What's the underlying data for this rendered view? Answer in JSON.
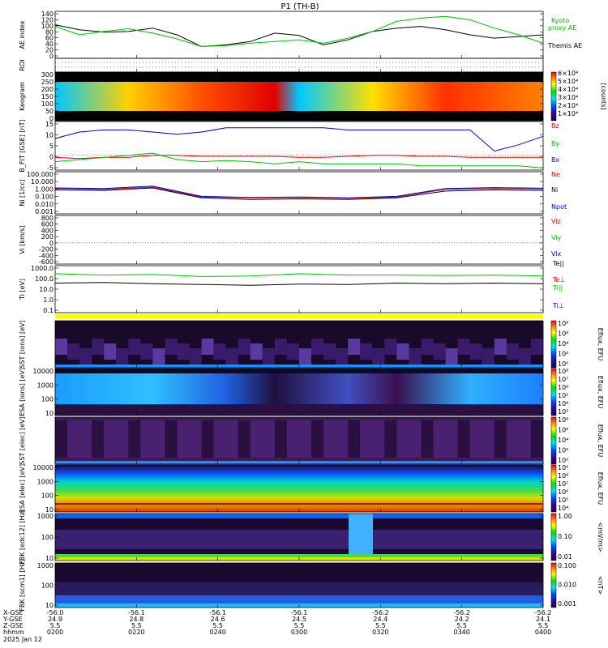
{
  "title": "P1  (TH-B)",
  "date": "2025 Jan 12",
  "time_axis": {
    "ticks": [
      "0200",
      "0220",
      "0240",
      "0300",
      "0320",
      "0340",
      "0400"
    ],
    "row_labels": [
      "X-GSE",
      "Y-GSE",
      "Z-GSE",
      "hhmm"
    ],
    "x_gse": [
      "-56.0",
      "-56.1",
      "-56.1",
      "-56.1",
      "-56.2",
      "-56.2",
      "-56.2"
    ],
    "y_gse": [
      "24.9",
      "24.8",
      "24.6",
      "24.5",
      "24.4",
      "24.2",
      "24.1"
    ],
    "z_gse": [
      "5.5",
      "5.5",
      "5.5",
      "5.5",
      "5.5",
      "5.5",
      "5.5"
    ]
  },
  "chart_data": [
    {
      "type": "line",
      "ylabel": "AE index",
      "yticks": [
        "140",
        "120",
        "100",
        "80",
        "60",
        "40",
        "20",
        "0"
      ],
      "ylim": [
        0,
        140
      ],
      "x_hours": [
        2.0,
        2.1,
        2.2,
        2.3,
        2.4,
        2.5,
        2.6,
        2.7,
        2.8,
        2.9,
        3.0,
        3.1,
        3.2,
        3.3,
        3.4,
        3.5,
        3.6,
        3.7,
        3.8,
        3.9,
        4.0
      ],
      "series": [
        {
          "name": "Themis AE",
          "color": "#000000",
          "values": [
            100,
            85,
            78,
            80,
            90,
            70,
            35,
            40,
            50,
            75,
            68,
            40,
            55,
            80,
            90,
            95,
            85,
            70,
            60,
            65,
            70
          ]
        },
        {
          "name": "Kyoto proxy AE",
          "color": "#00c000",
          "values": [
            95,
            70,
            80,
            88,
            75,
            58,
            35,
            38,
            45,
            50,
            55,
            45,
            60,
            80,
            110,
            120,
            125,
            115,
            90,
            70,
            45
          ]
        }
      ],
      "legend": [
        "Kyoto",
        "proxy AE",
        "Themis AE"
      ]
    },
    {
      "type": "line",
      "ylabel": "ROI",
      "ylim": [
        0,
        1
      ],
      "grid": "dotted"
    },
    {
      "type": "heatmap",
      "ylabel": "Keogram",
      "yticks": [
        "300",
        "250",
        "200",
        "150",
        "100",
        "50",
        "0"
      ],
      "colorbar": {
        "label": "[counts]",
        "ticks": [
          "6×10⁴",
          "5×10⁴",
          "4×10⁴",
          "3×10⁴",
          "2×10⁴",
          "1×10⁴"
        ]
      }
    },
    {
      "type": "line",
      "ylabel": "B_FIT [GSE] [nT]",
      "yticks": [
        "15",
        "10",
        "5",
        "0",
        "-5"
      ],
      "ylim": [
        -7,
        16
      ],
      "x_hours": [
        2.0,
        2.1,
        2.2,
        2.3,
        2.4,
        2.5,
        2.6,
        2.7,
        2.8,
        2.9,
        3.0,
        3.1,
        3.2,
        3.3,
        3.4,
        3.5,
        3.6,
        3.7,
        3.8,
        3.9,
        4.0
      ],
      "series": [
        {
          "name": "Bz",
          "color": "#e00000",
          "values": [
            -1,
            -1.5,
            -1,
            -1,
            0,
            0,
            -0.5,
            -0.5,
            -0.5,
            -0.5,
            -1,
            -1,
            -0.5,
            0,
            0,
            -0.5,
            -0.5,
            -1,
            -1,
            -1,
            -1
          ]
        },
        {
          "name": "By",
          "color": "#00c000",
          "values": [
            -3,
            -2,
            -1,
            0,
            1,
            -2,
            -3,
            -2.5,
            -3,
            -4,
            -3,
            -4,
            -4,
            -4,
            -4,
            -5,
            -5,
            -5,
            -5,
            -5,
            -6
          ]
        },
        {
          "name": "Bx",
          "color": "#0000d0",
          "values": [
            8,
            11,
            12,
            12,
            11,
            10,
            11,
            13,
            13,
            13,
            13,
            13,
            12,
            12,
            12,
            12,
            12,
            12,
            2,
            5,
            9
          ]
        }
      ]
    },
    {
      "type": "line",
      "ylabel": "Ni [1/cc]",
      "yticks": [
        "100.000",
        "10.000",
        "1.000",
        "0.100",
        "0.010",
        "0.001"
      ],
      "ylim": [
        0.001,
        100
      ],
      "scale": "log",
      "x_hours": [
        2.0,
        2.2,
        2.4,
        2.6,
        2.8,
        3.0,
        3.2,
        3.4,
        3.6,
        3.8,
        4.0
      ],
      "series": [
        {
          "name": "Ne",
          "color": "#e00000",
          "values": [
            1.0,
            0.8,
            1.5,
            0.1,
            0.08,
            0.09,
            0.07,
            0.1,
            0.8,
            1.0,
            0.9
          ]
        },
        {
          "name": "Ni",
          "color": "#000000",
          "values": [
            0.7,
            0.6,
            1.2,
            0.08,
            0.05,
            0.06,
            0.05,
            0.08,
            0.5,
            0.7,
            0.6
          ]
        },
        {
          "name": "Npot",
          "color": "#0000d0",
          "values": [
            1.2,
            1.0,
            2.0,
            0.12,
            0.09,
            0.1,
            0.08,
            0.12,
            1.0,
            1.3,
            1.1
          ]
        }
      ]
    },
    {
      "type": "line",
      "ylabel": "Vi [km/s]",
      "yticks": [
        "800",
        "600",
        "400",
        "200",
        "0",
        "-200",
        "-400",
        "-600"
      ],
      "ylim": [
        -700,
        800
      ],
      "legend": [
        "Viz",
        "Viy",
        "Vix"
      ]
    },
    {
      "type": "line",
      "ylabel": "Ti [eV]",
      "yticks": [
        "1000.0",
        "100.0",
        "10.0",
        "1.0",
        "0.1"
      ],
      "scale": "log",
      "ylim": [
        0.05,
        5000
      ],
      "x_hours": [
        2.0,
        2.2,
        2.4,
        2.6,
        2.8,
        3.0,
        3.2,
        3.4,
        3.6,
        3.8,
        4.0
      ],
      "series": [
        {
          "name": "Te||",
          "color": "#000000",
          "values": [
            70,
            80,
            60,
            50,
            40,
            55,
            50,
            70,
            60,
            70,
            60
          ]
        },
        {
          "name": "Te⊥",
          "color": "#e00000",
          "values": [
            null,
            null,
            null,
            null,
            null,
            null,
            null,
            null,
            null,
            null,
            null
          ]
        },
        {
          "name": "Ti||",
          "color": "#00c000",
          "values": [
            700,
            500,
            600,
            350,
            400,
            700,
            500,
            500,
            450,
            500,
            400
          ]
        },
        {
          "name": "Ti⊥",
          "color": "#0000d0",
          "values": [
            null,
            null,
            null,
            null,
            null,
            null,
            null,
            null,
            null,
            null,
            null
          ]
        }
      ]
    },
    {
      "type": "heatmap",
      "ylabel": "SST [ions] [eV]",
      "colorbar": {
        "label": "Eflux, EFU",
        "ticks": [
          "10⁸",
          "10⁶",
          "10⁴",
          "10²",
          "10⁰"
        ]
      }
    },
    {
      "type": "heatmap",
      "ylabel": "ESA [ions] [eV]",
      "yticks": [
        "10000",
        "1000",
        "100",
        "10"
      ],
      "colorbar": {
        "label": "Eflux, EFU",
        "ticks": [
          "10⁸",
          "10⁷",
          "10⁶",
          "10⁵",
          "10⁴",
          "10³"
        ]
      }
    },
    {
      "type": "heatmap",
      "ylabel": "SST [elec] [eV]",
      "colorbar": {
        "label": "Eflux, EFU",
        "ticks": [
          "10⁸",
          "10⁶",
          "10⁴",
          "10²",
          "10⁰"
        ]
      }
    },
    {
      "type": "heatmap",
      "ylabel": "ESA [elec] [eV]",
      "yticks": [
        "10000",
        "1000",
        "100",
        "10"
      ],
      "colorbar": {
        "label": "Eflux, EFU",
        "ticks": [
          "10⁹",
          "10⁸",
          "10⁷",
          "10⁶",
          "10⁵",
          "10⁴"
        ]
      }
    },
    {
      "type": "heatmap",
      "ylabel": "FBK [edc12] [Hz]",
      "yticks": [
        "1000",
        "100",
        "10"
      ],
      "colorbar": {
        "label": "<mV/m>",
        "ticks": [
          "1.00",
          "0.10",
          "0.01"
        ]
      }
    },
    {
      "type": "heatmap",
      "ylabel": "FBK [scm1] [Hz]",
      "yticks": [
        "1000",
        "100",
        "10"
      ],
      "colorbar": {
        "label": "<nT>",
        "ticks": [
          "0.100",
          "0.010",
          "0.001"
        ]
      }
    }
  ]
}
